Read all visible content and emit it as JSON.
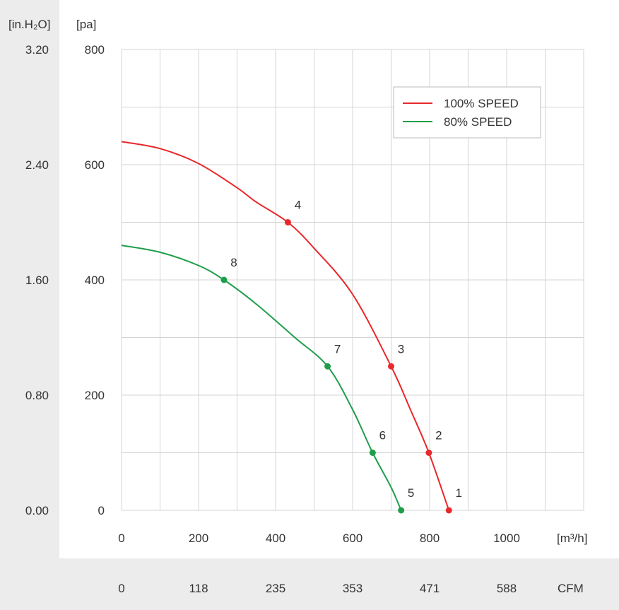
{
  "chart_data": {
    "type": "line",
    "xlabel": "[m³/h]",
    "ylabel": "[pa]",
    "secondary_ylabel": "[in.H₂O]",
    "secondary_xlabel": "CFM",
    "xlim": [
      0,
      1200
    ],
    "ylim": [
      0,
      800
    ],
    "x_ticks": [
      "0",
      "200",
      "400",
      "600",
      "800",
      "1000"
    ],
    "y_ticks": [
      "0",
      "200",
      "400",
      "600",
      "800"
    ],
    "y2_ticks": [
      "0.00",
      "0.80",
      "1.60",
      "2.40",
      "3.20"
    ],
    "x2_ticks": [
      "0",
      "118",
      "235",
      "353",
      "471",
      "588"
    ],
    "grid": true,
    "legend_position": "top-right",
    "series": [
      {
        "name": "100% SPEED",
        "color": "#e8282b",
        "curve": [
          [
            0,
            640
          ],
          [
            100,
            628
          ],
          [
            200,
            602
          ],
          [
            300,
            560
          ],
          [
            350,
            535
          ],
          [
            432,
            500
          ],
          [
            500,
            455
          ],
          [
            600,
            375
          ],
          [
            700,
            250
          ],
          [
            750,
            175
          ],
          [
            798,
            100
          ],
          [
            850,
            0
          ]
        ],
        "points": [
          {
            "label": "1",
            "x": 850,
            "y": 0
          },
          {
            "label": "2",
            "x": 798,
            "y": 100
          },
          {
            "label": "3",
            "x": 700,
            "y": 250
          },
          {
            "label": "4",
            "x": 432,
            "y": 500
          }
        ]
      },
      {
        "name": "80% SPEED",
        "color": "#1f9e4a",
        "curve": [
          [
            0,
            460
          ],
          [
            100,
            448
          ],
          [
            200,
            425
          ],
          [
            266,
            400
          ],
          [
            350,
            358
          ],
          [
            450,
            300
          ],
          [
            535,
            250
          ],
          [
            600,
            175
          ],
          [
            652,
            100
          ],
          [
            700,
            40
          ],
          [
            726,
            0
          ]
        ],
        "points": [
          {
            "label": "5",
            "x": 726,
            "y": 0
          },
          {
            "label": "6",
            "x": 652,
            "y": 100
          },
          {
            "label": "7",
            "x": 535,
            "y": 250
          },
          {
            "label": "8",
            "x": 266,
            "y": 400
          }
        ]
      }
    ]
  }
}
